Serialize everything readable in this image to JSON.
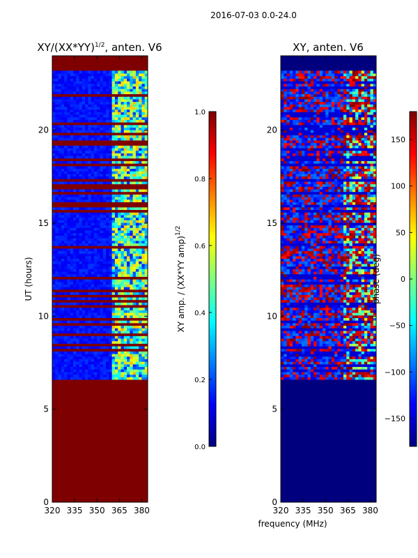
{
  "suptitle": "2016-07-03 0.0-24.0",
  "chart_data": [
    {
      "type": "heatmap",
      "title_main": "XY/(XX*YY)",
      "title_exp": "1/2",
      "title_suffix": ", anten. V6",
      "xlabel": "",
      "ylabel": "UT (hours)",
      "xlim": [
        320,
        384
      ],
      "ylim": [
        0,
        24
      ],
      "xticks": [
        "320",
        "335",
        "350",
        "365",
        "380"
      ],
      "yticks": [
        "0",
        "5",
        "10",
        "15",
        "20"
      ],
      "data_start_hour": 6.6,
      "data_end_hour": 23.2,
      "colorbar": {
        "label_main": "XY amp. / (XX*YY amp)",
        "label_exp": "1/2",
        "range": [
          0.0,
          1.0
        ],
        "ticks": [
          "0.0",
          "0.2",
          "0.4",
          "0.6",
          "0.8",
          "1.0"
        ]
      }
    },
    {
      "type": "heatmap",
      "title": "XY, anten. V6",
      "xlabel": "frequency (MHz)",
      "ylabel": "",
      "xlim": [
        320,
        384
      ],
      "ylim": [
        0,
        24
      ],
      "xticks": [
        "320",
        "335",
        "350",
        "365",
        "380"
      ],
      "yticks": [
        "0",
        "5",
        "10",
        "15",
        "20"
      ],
      "data_start_hour": 6.6,
      "data_end_hour": 23.2,
      "colorbar": {
        "label": "phase (deg)",
        "range": [
          -180,
          180
        ],
        "ticks": [
          "150",
          "100",
          "50",
          "0",
          "−50",
          "−100",
          "−150"
        ]
      }
    }
  ]
}
